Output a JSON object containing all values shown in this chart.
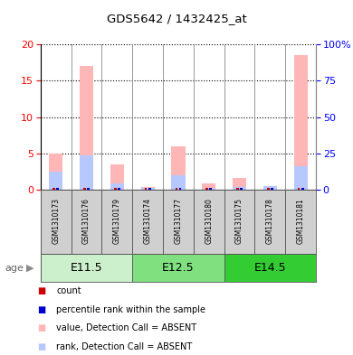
{
  "title": "GDS5642 / 1432425_at",
  "samples": [
    "GSM1310173",
    "GSM1310176",
    "GSM1310179",
    "GSM1310174",
    "GSM1310177",
    "GSM1310180",
    "GSM1310175",
    "GSM1310178",
    "GSM1310181"
  ],
  "age_groups": [
    {
      "label": "E11.5",
      "samples": [
        0,
        1,
        2
      ],
      "color_light": "#d4f7d4",
      "color_dark": "#5dd65d"
    },
    {
      "label": "E12.5",
      "samples": [
        3,
        4,
        5
      ],
      "color_light": "#70dd70",
      "color_dark": "#5dd65d"
    },
    {
      "label": "E14.5",
      "samples": [
        6,
        7,
        8
      ],
      "color_light": "#33cc33",
      "color_dark": "#22bb22"
    }
  ],
  "value_absent": [
    5.0,
    17.0,
    3.5,
    0.4,
    6.0,
    0.9,
    1.6,
    0.5,
    18.5
  ],
  "rank_absent": [
    12.5,
    24.0,
    4.5,
    1.5,
    10.0,
    0.5,
    2.0,
    2.5,
    16.0
  ],
  "count_val": [
    0.3,
    0.3,
    0.3,
    0.3,
    0.3,
    0.3,
    0.3,
    0.3,
    0.3
  ],
  "percentile_val": [
    0.3,
    0.3,
    0.3,
    0.3,
    0.3,
    0.3,
    0.3,
    0.3,
    0.3
  ],
  "ylim_left": [
    0,
    20
  ],
  "ylim_right": [
    0,
    100
  ],
  "yticks_left": [
    0,
    5,
    10,
    15,
    20
  ],
  "yticks_right": [
    0,
    25,
    50,
    75,
    100
  ],
  "ytick_labels_right": [
    "0",
    "25",
    "50",
    "75",
    "100%"
  ],
  "color_count": "#cc0000",
  "color_percentile": "#0000cc",
  "color_value_absent": "#FFB6B6",
  "color_rank_absent": "#B6C8FF",
  "sample_bg": "#d0d0d0",
  "age_label": "age"
}
